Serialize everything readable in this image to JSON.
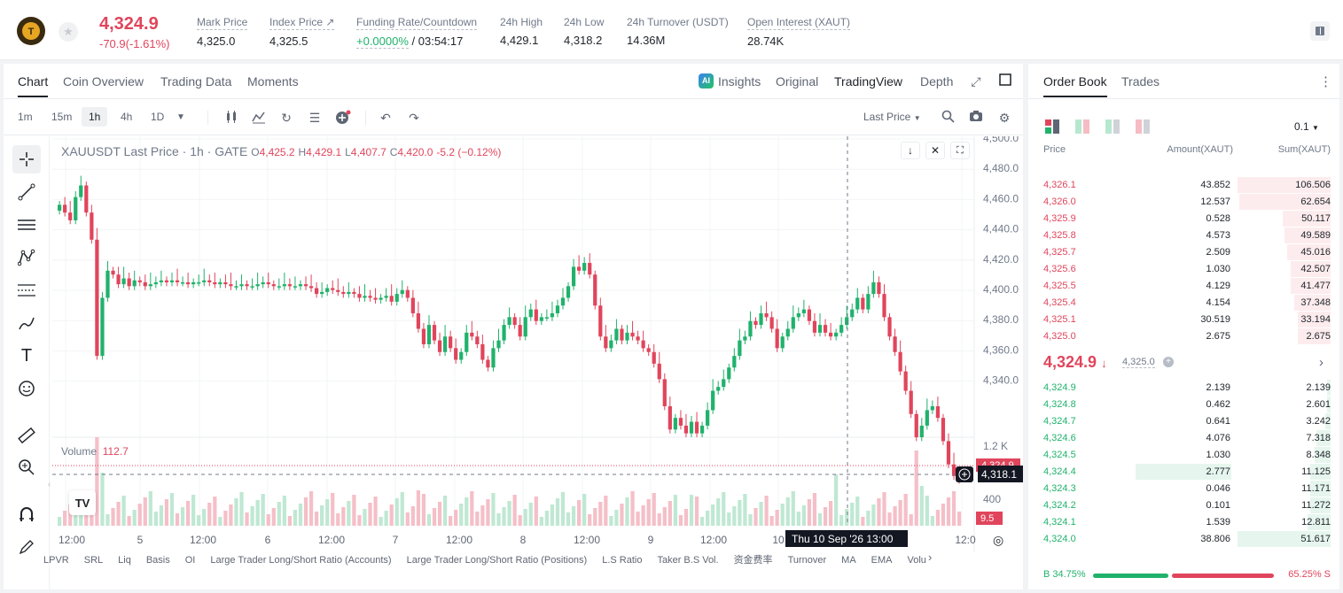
{
  "header": {
    "price": "4,324.9",
    "change": "-70.9(-1.61%)",
    "stats": [
      {
        "label": "Mark Price",
        "value": "4,325.0"
      },
      {
        "label": "Index Price ↗",
        "value": "4,325.5"
      },
      {
        "label": "Funding Rate/Countdown",
        "value_green": "+0.0000%",
        "value": " / 03:54:17"
      },
      {
        "label": "24h High",
        "value": "4,429.1"
      },
      {
        "label": "24h Low",
        "value": "4,318.2"
      },
      {
        "label": "24h Turnover (USDT)",
        "value": "14.36M"
      },
      {
        "label": "Open Interest (XAUT)",
        "value": "28.74K"
      }
    ]
  },
  "chart_tabs": [
    "Chart",
    "Coin Overview",
    "Trading Data",
    "Moments"
  ],
  "chart_tabs_right": [
    "Insights",
    "Original",
    "TradingView",
    "Depth"
  ],
  "timeframes": [
    "1m",
    "15m",
    "1h",
    "4h",
    "1D"
  ],
  "last_price_selector": "Last Price",
  "legend": {
    "symbol": "XAUUSDT Last Price · 1h · GATE",
    "o": "O",
    "o_val": "4,425.2",
    "h": "H",
    "h_val": "4,429.1",
    "l": "L",
    "l_val": "4,407.7",
    "c": "C",
    "c_val": "4,420.0",
    "chg": "-5.2 (−0.12%)"
  },
  "volume": {
    "label": "Volume",
    "value": "112.7"
  },
  "y_axis": [
    "4,500.0",
    "4,480.0",
    "4,460.0",
    "4,440.0",
    "4,420.0",
    "4,400.0",
    "4,380.0",
    "4,360.0",
    "4,340.0"
  ],
  "vol_axis": [
    "1.2 K",
    "800",
    "400"
  ],
  "x_axis": [
    "12:00",
    "5",
    "12:00",
    "6",
    "12:00",
    "7",
    "12:00",
    "8",
    "12:00",
    "9",
    "12:00",
    "10",
    "12:0"
  ],
  "price_tag": "4,324.9",
  "cross_price": "4,318.1",
  "vol_tag": "9.5",
  "cross_time": "Thu 10 Sep '26   13:00",
  "bottom_indicators": [
    "LPVR",
    "SRL",
    "Liq",
    "Basis",
    "OI",
    "Large Trader Long/Short Ratio (Accounts)",
    "Large Trader Long/Short Ratio (Positions)",
    "L.S Ratio",
    "Taker B.S Vol.",
    "资金费率",
    "Turnover",
    "MA",
    "EMA",
    "Volu"
  ],
  "orderbook": {
    "tabs": [
      "Order Book",
      "Trades"
    ],
    "precision": "0.1",
    "headers": [
      "Price",
      "Amount(XAUT)",
      "Sum(XAUT)"
    ],
    "asks": [
      {
        "p": "4,326.1",
        "a": "43.852",
        "s": "106.506",
        "depth": 1.0
      },
      {
        "p": "4,326.0",
        "a": "12.537",
        "s": "62.654",
        "depth": 0.98
      },
      {
        "p": "4,325.9",
        "a": "0.528",
        "s": "50.117",
        "depth": 0.51
      },
      {
        "p": "4,325.8",
        "a": "4.573",
        "s": "49.589",
        "depth": 0.5
      },
      {
        "p": "4,325.7",
        "a": "2.509",
        "s": "45.016",
        "depth": 0.47
      },
      {
        "p": "4,325.6",
        "a": "1.030",
        "s": "42.507",
        "depth": 0.43
      },
      {
        "p": "4,325.5",
        "a": "4.129",
        "s": "41.477",
        "depth": 0.43
      },
      {
        "p": "4,325.4",
        "a": "4.154",
        "s": "37.348",
        "depth": 0.39
      },
      {
        "p": "4,325.1",
        "a": "30.519",
        "s": "33.194",
        "depth": 0.35
      },
      {
        "p": "4,325.0",
        "a": "2.675",
        "s": "2.675",
        "depth": 0.35
      }
    ],
    "mid": "4,324.9",
    "mid_mark": "4,325.0",
    "bids": [
      {
        "p": "4,324.9",
        "a": "2.139",
        "s": "2.139",
        "depth": 0.04
      },
      {
        "p": "4,324.8",
        "a": "0.462",
        "s": "2.601",
        "depth": 0.04
      },
      {
        "p": "4,324.7",
        "a": "0.641",
        "s": "3.242",
        "depth": 0.06
      },
      {
        "p": "4,324.6",
        "a": "4.076",
        "s": "7.318",
        "depth": 0.15
      },
      {
        "p": "4,324.5",
        "a": "1.030",
        "s": "8.348",
        "depth": 0.17
      },
      {
        "p": "4,324.4",
        "a": "2.777",
        "s": "11.125",
        "depth": 0.22
      },
      {
        "p": "4,324.3",
        "a": "0.046",
        "s": "11.171",
        "depth": 0.22
      },
      {
        "p": "4,324.2",
        "a": "0.101",
        "s": "11.272",
        "depth": 0.22
      },
      {
        "p": "4,324.1",
        "a": "1.539",
        "s": "12.811",
        "depth": 0.25
      },
      {
        "p": "4,324.0",
        "a": "38.806",
        "s": "51.617",
        "depth": 1.0
      }
    ],
    "buy_ratio": "B 34.75%",
    "sell_ratio": "65.25% S",
    "buy_fraction": 0.3475
  },
  "colors": {
    "up": "#20b26c",
    "down": "#e0455c"
  }
}
